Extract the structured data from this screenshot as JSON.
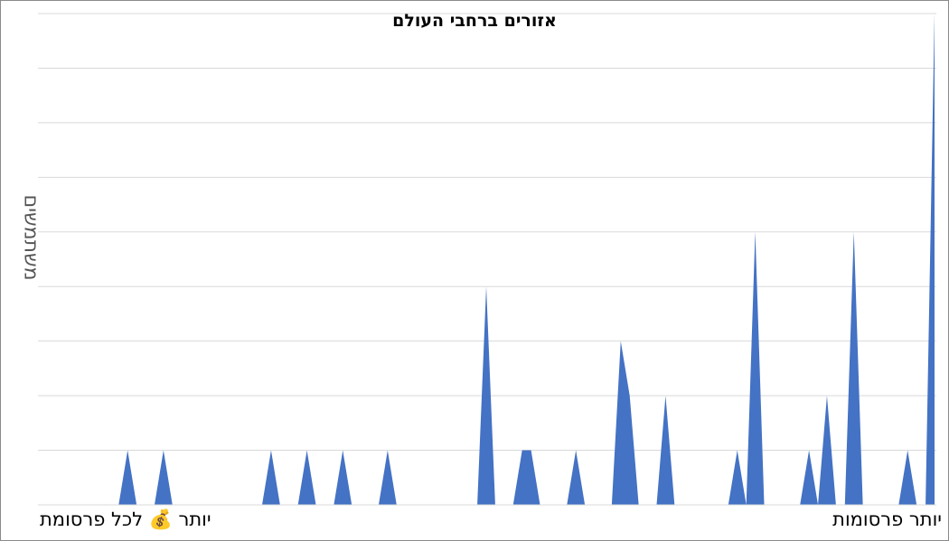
{
  "chart_data": {
    "type": "area",
    "title": "אזורים ברחבי העולם",
    "xlabel": "",
    "ylabel": "משתמשים",
    "x_caption_right": "יותר פרסומות",
    "x_caption_left": "יותר 💰 לכל פרסומת",
    "ylim": [
      0,
      9
    ],
    "grid": true,
    "series": [
      {
        "color": "#4472c4",
        "values": [
          0,
          0,
          0,
          0,
          0,
          0,
          0,
          0,
          0,
          0,
          1,
          0,
          0,
          0,
          1,
          0,
          0,
          0,
          0,
          0,
          0,
          0,
          0,
          0,
          0,
          0,
          1,
          0,
          0,
          0,
          1,
          0,
          0,
          0,
          1,
          0,
          0,
          0,
          0,
          1,
          0,
          0,
          0,
          0,
          0,
          0,
          0,
          0,
          0,
          0,
          4,
          0,
          0,
          0,
          1,
          1,
          0,
          0,
          0,
          0,
          1,
          0,
          0,
          0,
          0,
          3,
          2,
          0,
          0,
          0,
          2,
          0,
          0,
          0,
          0,
          0,
          0,
          0,
          1,
          0,
          5,
          0,
          0,
          0,
          0,
          0,
          1,
          0,
          2,
          0,
          0,
          5,
          0,
          0,
          0,
          0,
          0,
          1,
          0,
          0,
          9
        ]
      }
    ]
  }
}
